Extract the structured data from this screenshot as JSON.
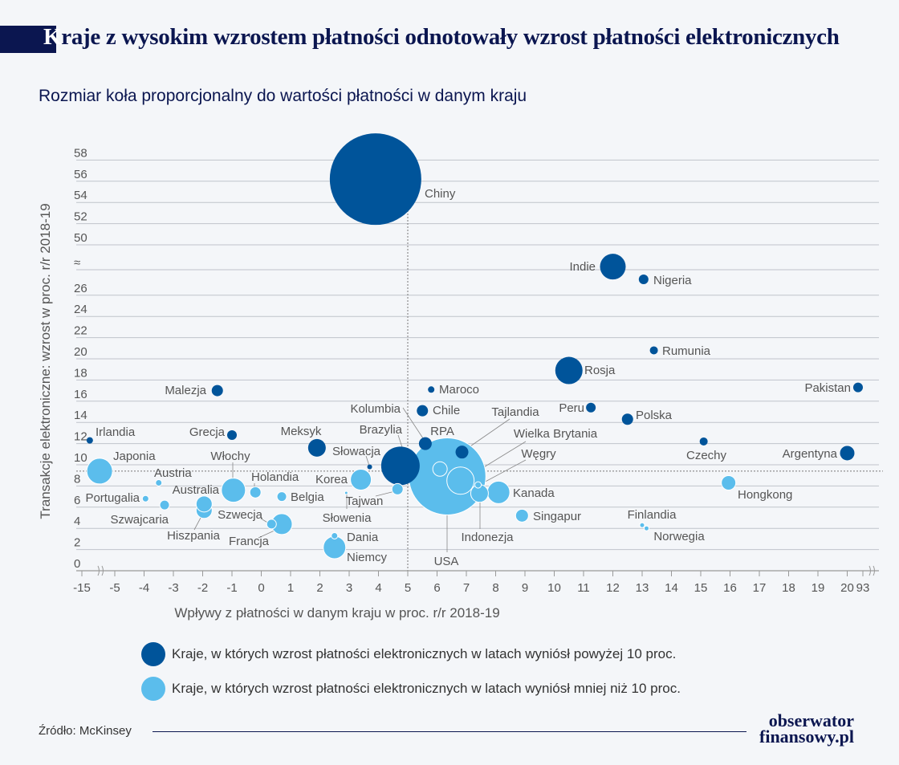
{
  "header": {
    "title_first_letter": "K",
    "title_rest": "raje z wysokim wzrostem płatności odnotowały wzrost płatności elektronicznych",
    "subtitle": "Rozmiar koła proporcjonalny do wartości płatności w danym kraju"
  },
  "chart_data": {
    "type": "scatter",
    "subtype": "bubble",
    "xlabel": "Wpływy z płatności w danym kraju w proc. r/r 2018-19",
    "ylabel": "Transakcje elektroniczne: wzrost w proc. r/r 2018-19",
    "x_ticks": [
      "-15",
      "-5",
      "-4",
      "-3",
      "-2",
      "-1",
      "0",
      "1",
      "2",
      "3",
      "4",
      "5",
      "6",
      "7",
      "8",
      "9",
      "10",
      "11",
      "12",
      "13",
      "14",
      "15",
      "16",
      "17",
      "18",
      "19",
      "20",
      "93"
    ],
    "y_ticks": [
      "0",
      "2",
      "4",
      "6",
      "8",
      "10",
      "12",
      "14",
      "16",
      "18",
      "20",
      "22",
      "24",
      "26",
      "≈",
      "50",
      "52",
      "54",
      "56",
      "58"
    ],
    "x_axis_breaks": [
      [
        -15,
        -5
      ],
      [
        20,
        93
      ]
    ],
    "y_axis_break": [
      26,
      50
    ],
    "grid": "horizontal",
    "reference_lines": {
      "x": 5,
      "y": 9.4
    },
    "colors": {
      "high": "#00549a",
      "low": "#5bbdec"
    },
    "points": [
      {
        "name": "Chiny",
        "x": 3.9,
        "y": 56.2,
        "size": 57,
        "group": "high"
      },
      {
        "name": "Indie",
        "x": 12.0,
        "y": 28.7,
        "size": 16,
        "group": "high"
      },
      {
        "name": "Nigeria",
        "x": 13.05,
        "y": 27.5,
        "size": 6,
        "group": "high"
      },
      {
        "name": "Rumunia",
        "x": 13.4,
        "y": 20.8,
        "size": 5,
        "group": "high"
      },
      {
        "name": "Rosja",
        "x": 10.5,
        "y": 18.9,
        "size": 17,
        "group": "high"
      },
      {
        "name": "Pakistan",
        "x": 73,
        "y": 17.3,
        "size": 6,
        "group": "high"
      },
      {
        "name": "Malezja",
        "x": -1.5,
        "y": 17.0,
        "size": 7,
        "group": "high"
      },
      {
        "name": "Maroco",
        "x": 5.8,
        "y": 17.1,
        "size": 4,
        "group": "high"
      },
      {
        "name": "Chile",
        "x": 5.5,
        "y": 15.1,
        "size": 7,
        "group": "high"
      },
      {
        "name": "Peru",
        "x": 11.25,
        "y": 15.4,
        "size": 6,
        "group": "high"
      },
      {
        "name": "Polska",
        "x": 12.5,
        "y": 14.3,
        "size": 7,
        "group": "high"
      },
      {
        "name": "Irlandia",
        "x": -12.6,
        "y": 12.3,
        "size": 4,
        "group": "high"
      },
      {
        "name": "Grecja",
        "x": -1.0,
        "y": 12.8,
        "size": 6,
        "group": "high"
      },
      {
        "name": "Czechy",
        "x": 15.1,
        "y": 12.2,
        "size": 5,
        "group": "high"
      },
      {
        "name": "Meksyk",
        "x": 1.9,
        "y": 11.6,
        "size": 11,
        "group": "high"
      },
      {
        "name": "Kolumbia",
        "x": 5.6,
        "y": 12.0,
        "size": 8,
        "group": "high"
      },
      {
        "name": "Argentyna",
        "x": 20.0,
        "y": 11.1,
        "size": 9,
        "group": "high"
      },
      {
        "name": "Słowacja",
        "x": 3.7,
        "y": 9.8,
        "size": 3,
        "group": "high"
      },
      {
        "name": "Brazylia",
        "x": 4.75,
        "y": 9.9,
        "size": 24,
        "group": "high"
      },
      {
        "name": "USA",
        "x": 6.35,
        "y": 8.9,
        "size": 48,
        "group": "low"
      },
      {
        "name": "Tajlandia",
        "x": 6.85,
        "y": 11.2,
        "size": 8,
        "group": "high"
      },
      {
        "name": "RPA",
        "x": 6.1,
        "y": 9.6,
        "size": 9,
        "group": "low"
      },
      {
        "name": "Wielka Brytania",
        "x": 6.8,
        "y": 8.5,
        "size": 17,
        "group": "low"
      },
      {
        "name": "Węgry",
        "x": 7.4,
        "y": 8.1,
        "size": 4,
        "group": "low"
      },
      {
        "name": "Indonezja",
        "x": 7.45,
        "y": 7.3,
        "size": 11,
        "group": "low"
      },
      {
        "name": "Kanada",
        "x": 8.1,
        "y": 7.4,
        "size": 14,
        "group": "low"
      },
      {
        "name": "Singapur",
        "x": 8.9,
        "y": 5.2,
        "size": 8,
        "group": "low"
      },
      {
        "name": "Hongkong",
        "x": 15.95,
        "y": 8.3,
        "size": 9,
        "group": "low"
      },
      {
        "name": "Finlandia",
        "x": 13.0,
        "y": 4.3,
        "size": 3,
        "group": "low"
      },
      {
        "name": "Norwegia",
        "x": 13.15,
        "y": 4.0,
        "size": 3,
        "group": "low"
      },
      {
        "name": "Japonia",
        "x": -9.6,
        "y": 9.4,
        "size": 16,
        "group": "low"
      },
      {
        "name": "Austria",
        "x": -3.5,
        "y": 8.3,
        "size": 4,
        "group": "low"
      },
      {
        "name": "Portugalia",
        "x": -3.95,
        "y": 6.8,
        "size": 4,
        "group": "low"
      },
      {
        "name": "Szwajcaria",
        "x": -3.3,
        "y": 6.2,
        "size": 6,
        "group": "low"
      },
      {
        "name": "Hiszpania",
        "x": -1.95,
        "y": 5.7,
        "size": 10,
        "group": "low"
      },
      {
        "name": "Australia",
        "x": -1.95,
        "y": 6.3,
        "size": 10,
        "group": "low"
      },
      {
        "name": "Włochy",
        "x": -0.95,
        "y": 7.6,
        "size": 15,
        "group": "low"
      },
      {
        "name": "Holandia",
        "x": -0.2,
        "y": 7.4,
        "size": 7,
        "group": "low"
      },
      {
        "name": "Belgia",
        "x": 0.7,
        "y": 7.0,
        "size": 6,
        "group": "low"
      },
      {
        "name": "Francja",
        "x": 0.7,
        "y": 4.4,
        "size": 13,
        "group": "low"
      },
      {
        "name": "Szwecja",
        "x": 0.35,
        "y": 4.4,
        "size": 6,
        "group": "low"
      },
      {
        "name": "Niemcy",
        "x": 2.5,
        "y": 2.2,
        "size": 14,
        "group": "low"
      },
      {
        "name": "Dania",
        "x": 2.5,
        "y": 3.3,
        "size": 4,
        "group": "low"
      },
      {
        "name": "Korea",
        "x": 3.4,
        "y": 8.6,
        "size": 13,
        "group": "low"
      },
      {
        "name": "Słowenia",
        "x": 2.9,
        "y": 7.35,
        "size": 2,
        "group": "low"
      },
      {
        "name": "Tajwan",
        "x": 4.65,
        "y": 7.7,
        "size": 7,
        "group": "low"
      }
    ],
    "legend": [
      {
        "group": "high",
        "label": "Kraje, w których wzrost płatności elektronicznych w latach wyniósł powyżej 10 proc."
      },
      {
        "group": "low",
        "label": "Kraje, w których wzrost płatności elektronicznych w latach wyniósł mniej niż 10 proc."
      }
    ],
    "legend_placement": "bottom"
  },
  "footer": {
    "source": "Źródło: McKinsey",
    "logo_line1": "obserwator",
    "logo_line2": "finansowy.pl"
  }
}
